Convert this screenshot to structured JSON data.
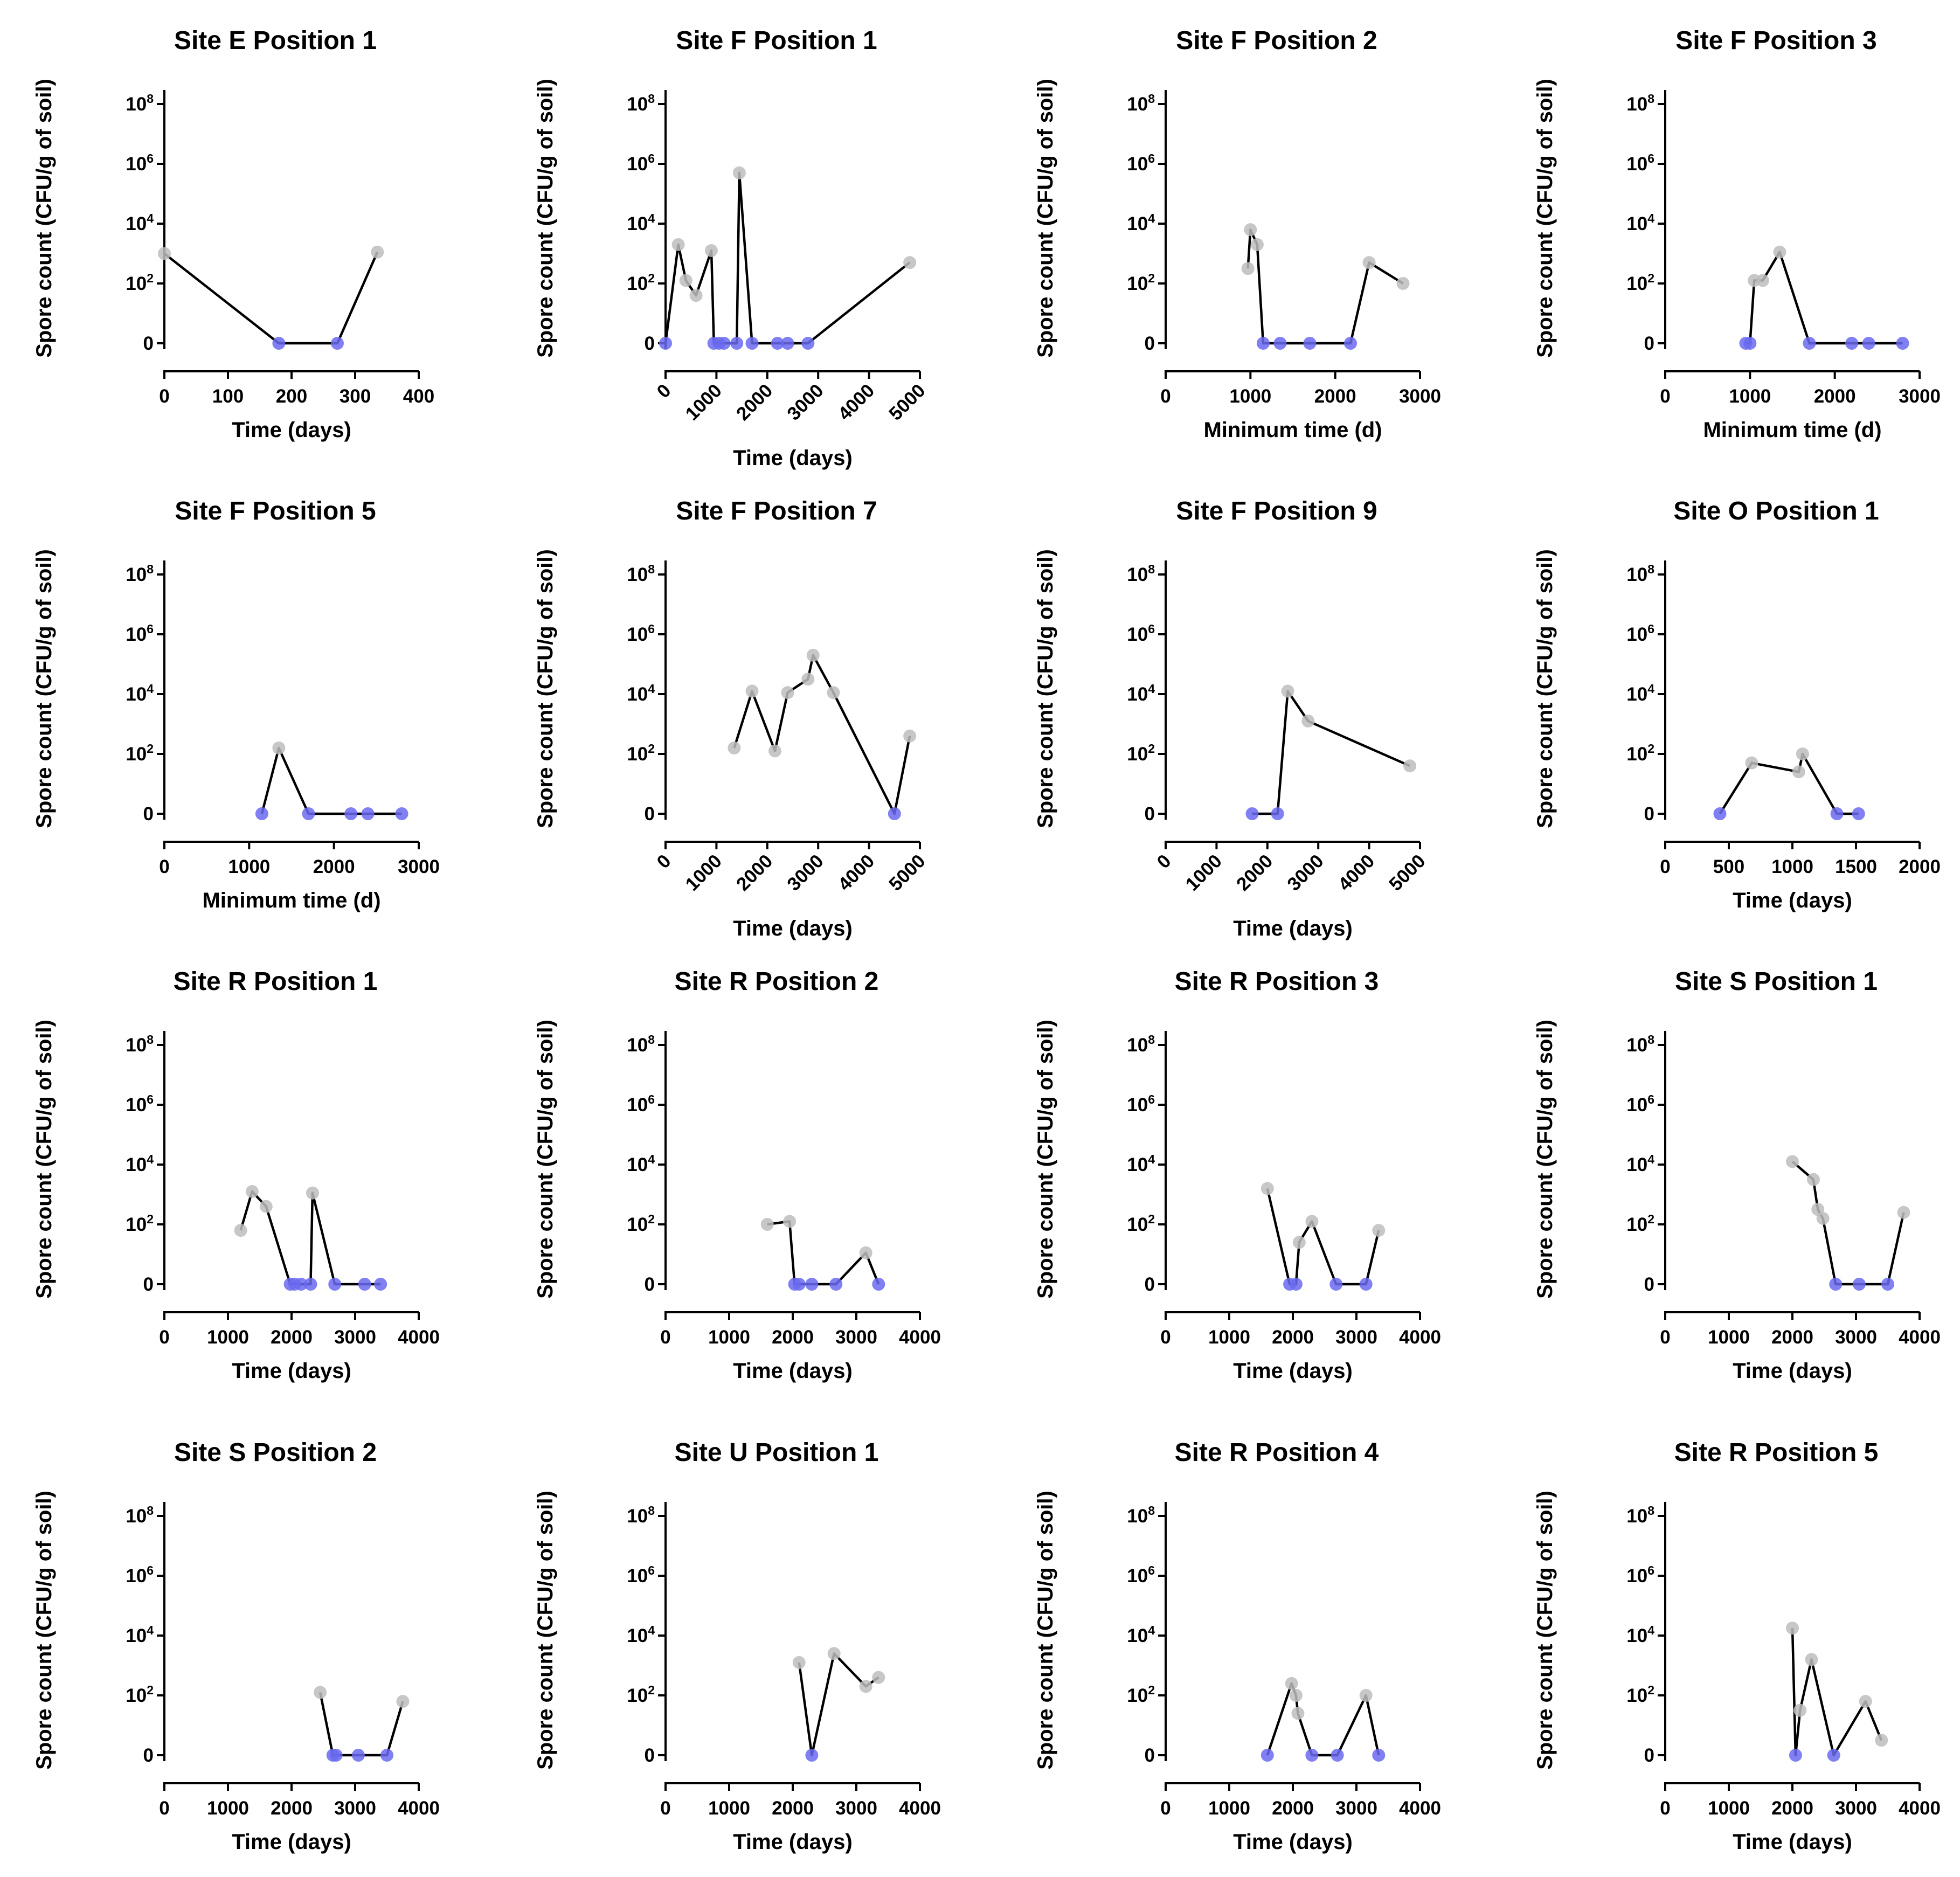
{
  "chart_data": [
    {
      "type": "line",
      "title": "Site E Position 1",
      "xlabel": "Time (days)",
      "ylabel": "Spore count (CFU/g of soil)",
      "xticks": [
        "0",
        "100",
        "200",
        "300",
        "400"
      ],
      "xlim": [
        0,
        400
      ],
      "rotated_xticks": false,
      "yticks": [
        "0",
        "10",
        "10",
        "10",
        "10"
      ],
      "yticks_exp": [
        "",
        "2",
        "4",
        "6",
        "8"
      ],
      "points": [
        [
          0,
          3
        ],
        [
          180,
          0
        ],
        [
          272,
          0
        ],
        [
          335,
          3.05
        ]
      ]
    },
    {
      "type": "line",
      "title": "Site F Position 1",
      "xlabel": "Time (days)",
      "ylabel": "Spore count (CFU/g of soil)",
      "xticks": [
        "0",
        "1000",
        "2000",
        "3000",
        "4000",
        "5000"
      ],
      "xlim": [
        0,
        5000
      ],
      "rotated_xticks": true,
      "yticks": [
        "0",
        "10",
        "10",
        "10",
        "10"
      ],
      "yticks_exp": [
        "",
        "2",
        "4",
        "6",
        "8"
      ],
      "points": [
        [
          0,
          0
        ],
        [
          250,
          3.3
        ],
        [
          400,
          2.1
        ],
        [
          600,
          1.6
        ],
        [
          900,
          3.1
        ],
        [
          950,
          0
        ],
        [
          1050,
          0
        ],
        [
          1150,
          0
        ],
        [
          1400,
          0
        ],
        [
          1450,
          5.7
        ],
        [
          1700,
          0
        ],
        [
          2200,
          0
        ],
        [
          2400,
          0
        ],
        [
          2800,
          0
        ],
        [
          4800,
          2.7
        ]
      ]
    },
    {
      "type": "line",
      "title": "Site F Position 2",
      "xlabel": "Minimum time (d)",
      "ylabel": "Spore count (CFU/g of soil)",
      "xticks": [
        "0",
        "1000",
        "2000",
        "3000"
      ],
      "xlim": [
        0,
        3000
      ],
      "rotated_xticks": false,
      "yticks": [
        "0",
        "10",
        "10",
        "10",
        "10"
      ],
      "yticks_exp": [
        "",
        "2",
        "4",
        "6",
        "8"
      ],
      "points": [
        [
          970,
          2.5
        ],
        [
          1000,
          3.8
        ],
        [
          1080,
          3.3
        ],
        [
          1150,
          0
        ],
        [
          1350,
          0
        ],
        [
          1700,
          0
        ],
        [
          2180,
          0
        ],
        [
          2400,
          2.7
        ],
        [
          2800,
          2
        ]
      ]
    },
    {
      "type": "line",
      "title": "Site F Position 3",
      "xlabel": "Minimum time (d)",
      "ylabel": "Spore count (CFU/g of soil)",
      "xticks": [
        "0",
        "1000",
        "2000",
        "3000"
      ],
      "xlim": [
        0,
        3000
      ],
      "rotated_xticks": false,
      "yticks": [
        "0",
        "10",
        "10",
        "10",
        "10"
      ],
      "yticks_exp": [
        "",
        "2",
        "4",
        "6",
        "8"
      ],
      "points": [
        [
          950,
          0
        ],
        [
          1000,
          0
        ],
        [
          1050,
          2.1
        ],
        [
          1150,
          2.1
        ],
        [
          1350,
          3.05
        ],
        [
          1700,
          0
        ],
        [
          2200,
          0
        ],
        [
          2400,
          0
        ],
        [
          2800,
          0
        ]
      ]
    },
    {
      "type": "line",
      "title": "Site F Position 5",
      "xlabel": "Minimum time (d)",
      "ylabel": "Spore count (CFU/g of soil)",
      "xticks": [
        "0",
        "1000",
        "2000",
        "3000"
      ],
      "xlim": [
        0,
        3000
      ],
      "rotated_xticks": false,
      "yticks": [
        "0",
        "10",
        "10",
        "10",
        "10"
      ],
      "yticks_exp": [
        "",
        "2",
        "4",
        "6",
        "8"
      ],
      "points": [
        [
          1150,
          0
        ],
        [
          1350,
          2.2
        ],
        [
          1700,
          0
        ],
        [
          2200,
          0
        ],
        [
          2400,
          0
        ],
        [
          2800,
          0
        ]
      ]
    },
    {
      "type": "line",
      "title": "Site F Position 7",
      "xlabel": "Time (days)",
      "ylabel": "Spore count (CFU/g of soil)",
      "xticks": [
        "0",
        "1000",
        "2000",
        "3000",
        "4000",
        "5000"
      ],
      "xlim": [
        0,
        5000
      ],
      "rotated_xticks": true,
      "yticks": [
        "0",
        "10",
        "10",
        "10",
        "10"
      ],
      "yticks_exp": [
        "",
        "2",
        "4",
        "6",
        "8"
      ],
      "points": [
        [
          1350,
          2.2
        ],
        [
          1700,
          4.1
        ],
        [
          2150,
          2.1
        ],
        [
          2400,
          4.05
        ],
        [
          2800,
          4.5
        ],
        [
          2900,
          5.3
        ],
        [
          3300,
          4.05
        ],
        [
          4500,
          0
        ],
        [
          4800,
          2.6
        ]
      ]
    },
    {
      "type": "line",
      "title": "Site F Position 9",
      "xlabel": "Time (days)",
      "ylabel": "Spore count (CFU/g of soil)",
      "xticks": [
        "0",
        "1000",
        "2000",
        "3000",
        "4000",
        "5000"
      ],
      "xlim": [
        0,
        5000
      ],
      "rotated_xticks": true,
      "yticks": [
        "0",
        "10",
        "10",
        "10",
        "10"
      ],
      "yticks_exp": [
        "",
        "2",
        "4",
        "6",
        "8"
      ],
      "points": [
        [
          1700,
          0
        ],
        [
          2200,
          0
        ],
        [
          2400,
          4.1
        ],
        [
          2800,
          3.1
        ],
        [
          4800,
          1.6
        ]
      ]
    },
    {
      "type": "line",
      "title": "Site O Position 1",
      "xlabel": "Time (days)",
      "ylabel": "Spore count (CFU/g of soil)",
      "xticks": [
        "0",
        "500",
        "1000",
        "1500",
        "2000"
      ],
      "xlim": [
        0,
        2000
      ],
      "rotated_xticks": false,
      "yticks": [
        "0",
        "10",
        "10",
        "10",
        "10"
      ],
      "yticks_exp": [
        "",
        "2",
        "4",
        "6",
        "8"
      ],
      "points": [
        [
          430,
          0
        ],
        [
          680,
          1.7
        ],
        [
          1050,
          1.4
        ],
        [
          1080,
          2
        ],
        [
          1350,
          0
        ],
        [
          1520,
          0
        ]
      ]
    },
    {
      "type": "line",
      "title": "Site R Position 1",
      "xlabel": "Time (days)",
      "ylabel": "Spore count (CFU/g of soil)",
      "xticks": [
        "0",
        "1000",
        "2000",
        "3000",
        "4000"
      ],
      "xlim": [
        0,
        4000
      ],
      "rotated_xticks": false,
      "yticks": [
        "0",
        "10",
        "10",
        "10",
        "10"
      ],
      "yticks_exp": [
        "",
        "2",
        "4",
        "6",
        "8"
      ],
      "points": [
        [
          1200,
          1.8
        ],
        [
          1380,
          3.1
        ],
        [
          1600,
          2.6
        ],
        [
          1980,
          0
        ],
        [
          2050,
          0
        ],
        [
          2150,
          0
        ],
        [
          2300,
          0
        ],
        [
          2330,
          3.05
        ],
        [
          2680,
          0
        ],
        [
          3150,
          0
        ],
        [
          3400,
          0
        ]
      ]
    },
    {
      "type": "line",
      "title": "Site R Position 2",
      "xlabel": "Time (days)",
      "ylabel": "Spore count (CFU/g of soil)",
      "xticks": [
        "0",
        "1000",
        "2000",
        "3000",
        "4000"
      ],
      "xlim": [
        0,
        4000
      ],
      "rotated_xticks": false,
      "yticks": [
        "0",
        "10",
        "10",
        "10",
        "10"
      ],
      "yticks_exp": [
        "",
        "2",
        "4",
        "6",
        "8"
      ],
      "points": [
        [
          1600,
          2
        ],
        [
          1950,
          2.1
        ],
        [
          2030,
          0
        ],
        [
          2100,
          0
        ],
        [
          2300,
          0
        ],
        [
          2680,
          0
        ],
        [
          3150,
          1.05
        ],
        [
          3350,
          0
        ]
      ]
    },
    {
      "type": "line",
      "title": "Site R Position 3",
      "xlabel": "Time (days)",
      "ylabel": "Spore count (CFU/g of soil)",
      "xticks": [
        "0",
        "1000",
        "2000",
        "3000",
        "4000"
      ],
      "xlim": [
        0,
        4000
      ],
      "rotated_xticks": false,
      "yticks": [
        "0",
        "10",
        "10",
        "10",
        "10"
      ],
      "yticks_exp": [
        "",
        "2",
        "4",
        "6",
        "8"
      ],
      "points": [
        [
          1600,
          3.2
        ],
        [
          1950,
          0
        ],
        [
          2050,
          0
        ],
        [
          2100,
          1.4
        ],
        [
          2300,
          2.1
        ],
        [
          2680,
          0
        ],
        [
          3150,
          0
        ],
        [
          3350,
          1.8
        ]
      ]
    },
    {
      "type": "line",
      "title": "Site S Position 1",
      "xlabel": "Time (days)",
      "ylabel": "Spore count (CFU/g of soil)",
      "xticks": [
        "0",
        "1000",
        "2000",
        "3000",
        "4000"
      ],
      "xlim": [
        0,
        4000
      ],
      "rotated_xticks": false,
      "yticks": [
        "0",
        "10",
        "10",
        "10",
        "10"
      ],
      "yticks_exp": [
        "",
        "2",
        "4",
        "6",
        "8"
      ],
      "points": [
        [
          2000,
          4.1
        ],
        [
          2330,
          3.5
        ],
        [
          2400,
          2.5
        ],
        [
          2480,
          2.2
        ],
        [
          2680,
          0
        ],
        [
          3050,
          0
        ],
        [
          3500,
          0
        ],
        [
          3750,
          2.4
        ]
      ]
    },
    {
      "type": "line",
      "title": "Site S Position 2",
      "xlabel": "Time (days)",
      "ylabel": "Spore count (CFU/g of soil)",
      "xticks": [
        "0",
        "1000",
        "2000",
        "3000",
        "4000"
      ],
      "xlim": [
        0,
        4000
      ],
      "rotated_xticks": false,
      "yticks": [
        "0",
        "10",
        "10",
        "10",
        "10"
      ],
      "yticks_exp": [
        "",
        "2",
        "4",
        "6",
        "8"
      ],
      "points": [
        [
          2450,
          2.1
        ],
        [
          2650,
          0
        ],
        [
          2700,
          0
        ],
        [
          3050,
          0
        ],
        [
          3500,
          0
        ],
        [
          3750,
          1.8
        ]
      ]
    },
    {
      "type": "line",
      "title": "Site U Position 1",
      "xlabel": "Time (days)",
      "ylabel": "Spore count (CFU/g of soil)",
      "xticks": [
        "0",
        "1000",
        "2000",
        "3000",
        "4000"
      ],
      "xlim": [
        0,
        4000
      ],
      "rotated_xticks": false,
      "yticks": [
        "0",
        "10",
        "10",
        "10",
        "10"
      ],
      "yticks_exp": [
        "",
        "2",
        "4",
        "6",
        "8"
      ],
      "points": [
        [
          2100,
          3.1
        ],
        [
          2300,
          0
        ],
        [
          2650,
          3.4
        ],
        [
          3150,
          2.3
        ],
        [
          3350,
          2.6
        ]
      ]
    },
    {
      "type": "line",
      "title": "Site R Position 4",
      "xlabel": "Time (days)",
      "ylabel": "Spore count (CFU/g of soil)",
      "xticks": [
        "0",
        "1000",
        "2000",
        "3000",
        "4000"
      ],
      "xlim": [
        0,
        4000
      ],
      "rotated_xticks": false,
      "yticks": [
        "0",
        "10",
        "10",
        "10",
        "10"
      ],
      "yticks_exp": [
        "",
        "2",
        "4",
        "6",
        "8"
      ],
      "points": [
        [
          1600,
          0
        ],
        [
          1980,
          2.4
        ],
        [
          2050,
          2
        ],
        [
          2080,
          1.4
        ],
        [
          2300,
          0
        ],
        [
          2700,
          0
        ],
        [
          3150,
          2
        ],
        [
          3350,
          0
        ]
      ]
    },
    {
      "type": "line",
      "title": "Site R Position 5",
      "xlabel": "Time (days)",
      "ylabel": "Spore count (CFU/g of soil)",
      "xticks": [
        "0",
        "1000",
        "2000",
        "3000",
        "4000"
      ],
      "xlim": [
        0,
        4000
      ],
      "rotated_xticks": false,
      "yticks": [
        "0",
        "10",
        "10",
        "10",
        "10"
      ],
      "yticks_exp": [
        "",
        "2",
        "4",
        "6",
        "8"
      ],
      "points": [
        [
          2000,
          4.25
        ],
        [
          2050,
          0
        ],
        [
          2120,
          1.5
        ],
        [
          2300,
          3.2
        ],
        [
          2650,
          0
        ],
        [
          3150,
          1.8
        ],
        [
          3400,
          0.5
        ]
      ]
    }
  ],
  "colors": {
    "positive_point": "#bdbdbd",
    "zero_point": "#6a6af0",
    "line": "#000000"
  }
}
